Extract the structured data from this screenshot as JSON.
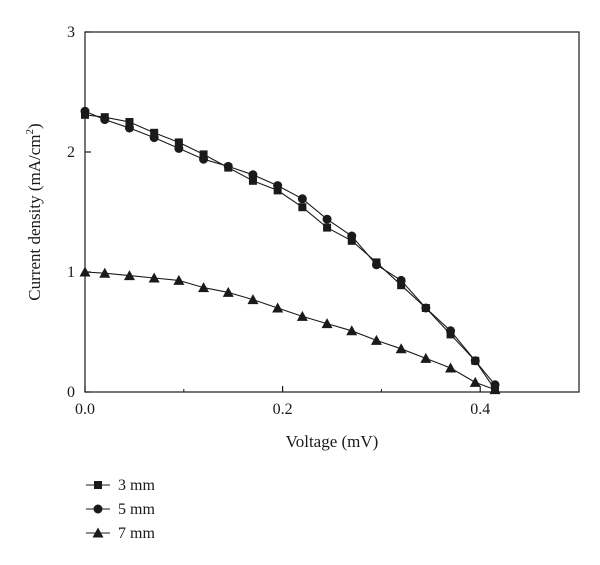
{
  "chart_data": {
    "type": "line",
    "xlabel": "Voltage (mV)",
    "ylabel": "Current density (mA/cm",
    "ylabel_sup": "2",
    "ylabel_suffix": ")",
    "xlim": [
      0,
      0.5
    ],
    "ylim": [
      0,
      3
    ],
    "xticks": [
      0.0,
      0.2,
      0.4
    ],
    "xtick_labels": [
      "0.0",
      "0.2",
      "0.4"
    ],
    "xminor": [
      0.1,
      0.3,
      0.5
    ],
    "yticks": [
      0,
      1,
      2,
      3
    ],
    "ytick_labels": [
      "0",
      "1",
      "2",
      "3"
    ],
    "grid": false,
    "legend_position": "bottom-left below plot",
    "series": [
      {
        "name": "3 mm",
        "marker": "square",
        "x": [
          0.0,
          0.02,
          0.045,
          0.07,
          0.095,
          0.12,
          0.145,
          0.17,
          0.195,
          0.22,
          0.245,
          0.27,
          0.295,
          0.32,
          0.345,
          0.37,
          0.395,
          0.415
        ],
        "y": [
          2.31,
          2.29,
          2.25,
          2.16,
          2.08,
          1.98,
          1.87,
          1.76,
          1.68,
          1.54,
          1.37,
          1.26,
          1.08,
          0.89,
          0.7,
          0.48,
          0.26,
          0.02
        ]
      },
      {
        "name": "5 mm",
        "marker": "circle",
        "x": [
          0.0,
          0.02,
          0.045,
          0.07,
          0.095,
          0.12,
          0.145,
          0.17,
          0.195,
          0.22,
          0.245,
          0.27,
          0.295,
          0.32,
          0.345,
          0.37,
          0.395,
          0.415
        ],
        "y": [
          2.34,
          2.27,
          2.2,
          2.12,
          2.03,
          1.94,
          1.88,
          1.81,
          1.72,
          1.61,
          1.44,
          1.3,
          1.06,
          0.93,
          0.7,
          0.51,
          0.26,
          0.06
        ]
      },
      {
        "name": "7 mm",
        "marker": "triangle",
        "x": [
          0.0,
          0.02,
          0.045,
          0.07,
          0.095,
          0.12,
          0.145,
          0.17,
          0.195,
          0.22,
          0.245,
          0.27,
          0.295,
          0.32,
          0.345,
          0.37,
          0.395,
          0.415
        ],
        "y": [
          1.0,
          0.99,
          0.97,
          0.95,
          0.93,
          0.87,
          0.83,
          0.77,
          0.7,
          0.63,
          0.57,
          0.51,
          0.43,
          0.36,
          0.28,
          0.2,
          0.08,
          0.02
        ]
      }
    ]
  },
  "colors": {
    "line": "#1a1a1a",
    "background": "#ffffff"
  }
}
